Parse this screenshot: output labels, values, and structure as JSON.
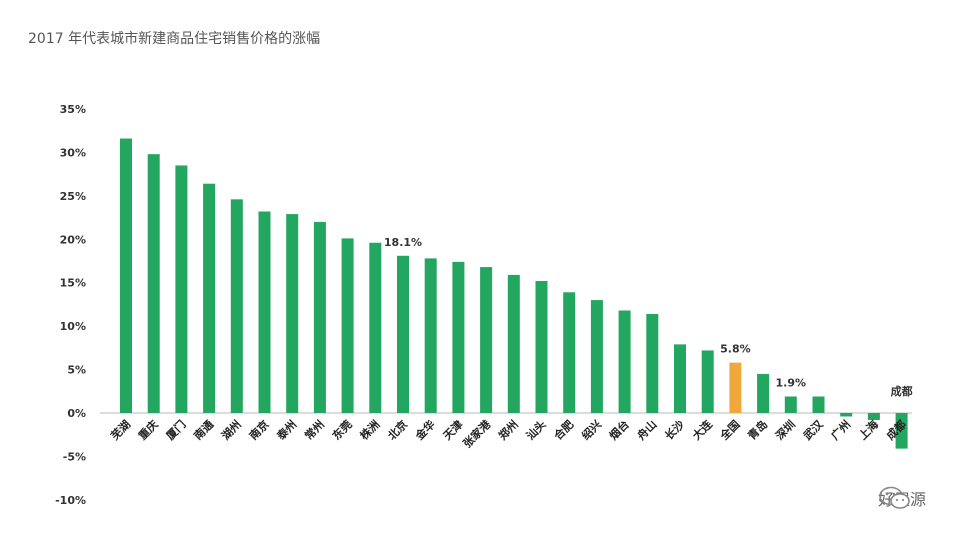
{
  "chart_data": {
    "type": "bar",
    "title": "2017 年代表城市新建商品住宅销售价格的涨幅",
    "categories": [
      "芜湖",
      "重庆",
      "厦门",
      "南通",
      "湖州",
      "南京",
      "泰州",
      "常州",
      "东莞",
      "株洲",
      "北京",
      "金华",
      "天津",
      "张家港",
      "郑州",
      "汕头",
      "合肥",
      "绍兴",
      "烟台",
      "舟山",
      "长沙",
      "大连",
      "全国",
      "青岛",
      "深圳",
      "武汉",
      "广州",
      "上海",
      "成都"
    ],
    "values": [
      31.6,
      29.8,
      28.5,
      26.4,
      24.6,
      23.2,
      22.9,
      22.0,
      20.1,
      19.6,
      18.1,
      17.8,
      17.4,
      16.8,
      15.9,
      15.2,
      13.9,
      13.0,
      11.8,
      11.4,
      7.9,
      7.2,
      5.8,
      4.5,
      1.9,
      1.9,
      -0.4,
      -0.8,
      -4.1
    ],
    "ylim": [
      -10,
      35
    ],
    "yticks": [
      -10,
      -5,
      0,
      5,
      10,
      15,
      20,
      25,
      30,
      35
    ],
    "ytick_labels": [
      "-10%",
      "-5%",
      "0%",
      "5%",
      "10%",
      "15%",
      "20%",
      "25%",
      "30%",
      "35%"
    ],
    "data_labels": [
      {
        "category": "北京",
        "text": "18.1%"
      },
      {
        "category": "全国",
        "text": "5.8%"
      },
      {
        "category": "深圳",
        "text": "1.9%"
      },
      {
        "category": "成都",
        "text": "成都"
      }
    ],
    "colors": {
      "default": "#23a65f",
      "highlight": "#f0a83c",
      "axis": "#b8b8b8"
    },
    "highlight_category": "全国",
    "grid": false
  },
  "watermark": {
    "text": "好屋源",
    "icon": "wechat-icon"
  }
}
